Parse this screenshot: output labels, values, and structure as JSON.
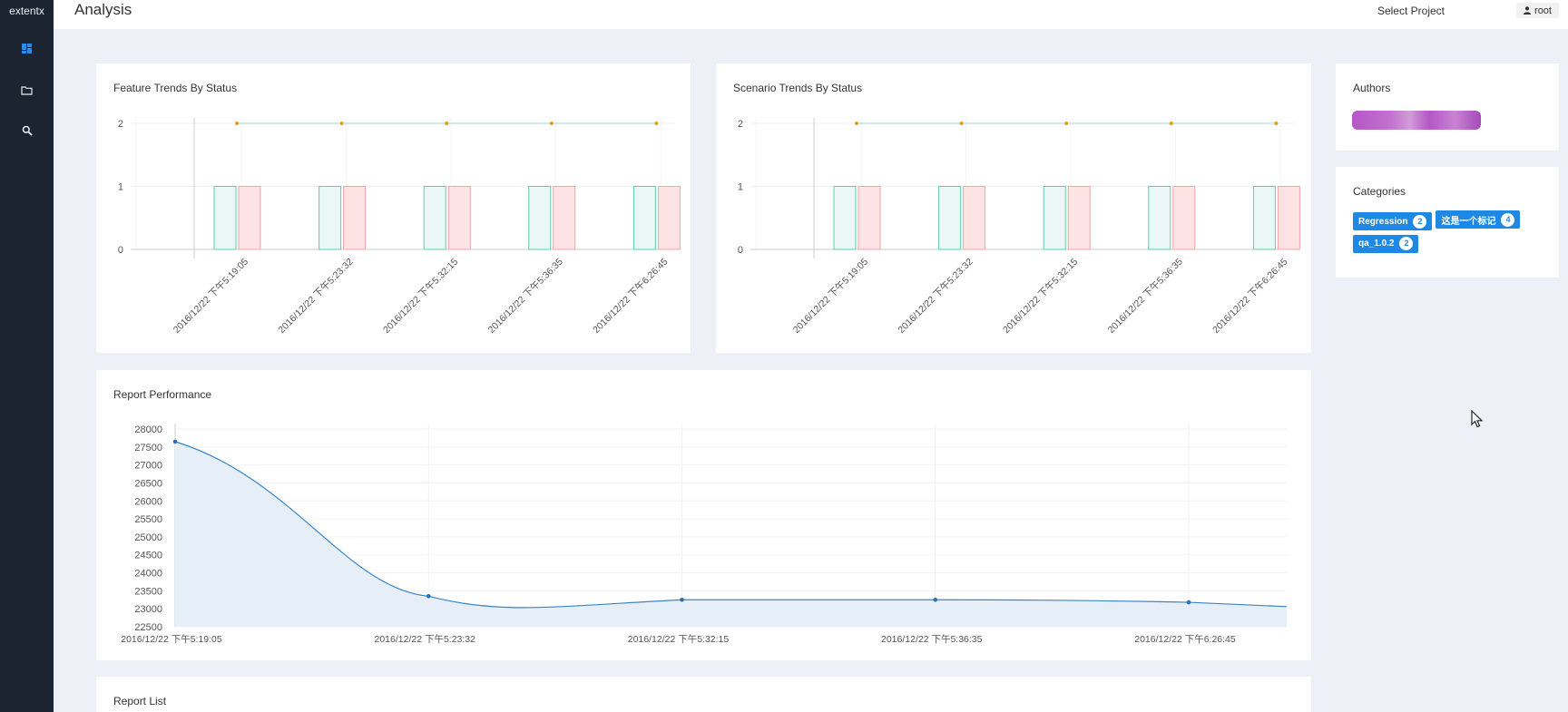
{
  "app": {
    "brand": "extentx"
  },
  "sidebar": {
    "items": [
      {
        "name": "dashboard-icon"
      },
      {
        "name": "folder-icon"
      },
      {
        "name": "search-icon"
      }
    ]
  },
  "header": {
    "title": "Analysis",
    "select_project": "Select Project",
    "user": "root"
  },
  "feature_trends": {
    "title": "Feature Trends By Status"
  },
  "scenario_trends": {
    "title": "Scenario Trends By Status"
  },
  "report_performance": {
    "title": "Report Performance"
  },
  "report_list": {
    "title": "Report List"
  },
  "authors": {
    "title": "Authors"
  },
  "categories": {
    "title": "Categories",
    "items": [
      {
        "label": "Regression",
        "count": "2"
      },
      {
        "label": "这是一个标记",
        "count": "4"
      },
      {
        "label": "qa_1.0.2",
        "count": "2"
      }
    ]
  },
  "colors": {
    "accent": "#1e88e5",
    "pass": "#5ccfa9",
    "fail": "#f5a3a8",
    "line": "#3a86c8",
    "dots": "#e4a019"
  },
  "chart_data": [
    {
      "type": "bar",
      "title": "Feature Trends By Status",
      "categories": [
        "2016/12/22 下午5:19:05",
        "2016/12/22 下午5:23:32",
        "2016/12/22 下午5:32:15",
        "2016/12/22 下午5:36:35",
        "2016/12/22 下午6:26:45"
      ],
      "series": [
        {
          "values": [
            1,
            1,
            1,
            1,
            1
          ]
        },
        {
          "values": [
            1,
            1,
            1,
            1,
            1
          ]
        },
        {
          "type": "line",
          "values": [
            2,
            2,
            2,
            2,
            2
          ]
        }
      ],
      "ylim": [
        0,
        2
      ],
      "yticks": [
        0,
        1,
        2
      ]
    },
    {
      "type": "bar",
      "title": "Scenario Trends By Status",
      "categories": [
        "2016/12/22 下午5:19:05",
        "2016/12/22 下午5:23:32",
        "2016/12/22 下午5:32:15",
        "2016/12/22 下午5:36:35",
        "2016/12/22 下午6:26:45"
      ],
      "series": [
        {
          "values": [
            1,
            1,
            1,
            1,
            1
          ]
        },
        {
          "values": [
            1,
            1,
            1,
            1,
            1
          ]
        },
        {
          "type": "line",
          "values": [
            2,
            2,
            2,
            2,
            2
          ]
        }
      ],
      "ylim": [
        0,
        2
      ],
      "yticks": [
        0,
        1,
        2
      ]
    },
    {
      "type": "area",
      "title": "Report Performance",
      "categories": [
        "2016/12/22 下午5:19:05",
        "2016/12/22 下午5:23:32",
        "2016/12/22 下午5:32:15",
        "2016/12/22 下午5:36:35",
        "2016/12/22 下午6:26:45"
      ],
      "values": [
        27650,
        23350,
        23250,
        23250,
        23180
      ],
      "ylim": [
        22500,
        28000
      ],
      "yticks": [
        22500,
        23000,
        23500,
        24000,
        24500,
        25000,
        25500,
        26000,
        26500,
        27000,
        27500,
        28000
      ]
    }
  ]
}
